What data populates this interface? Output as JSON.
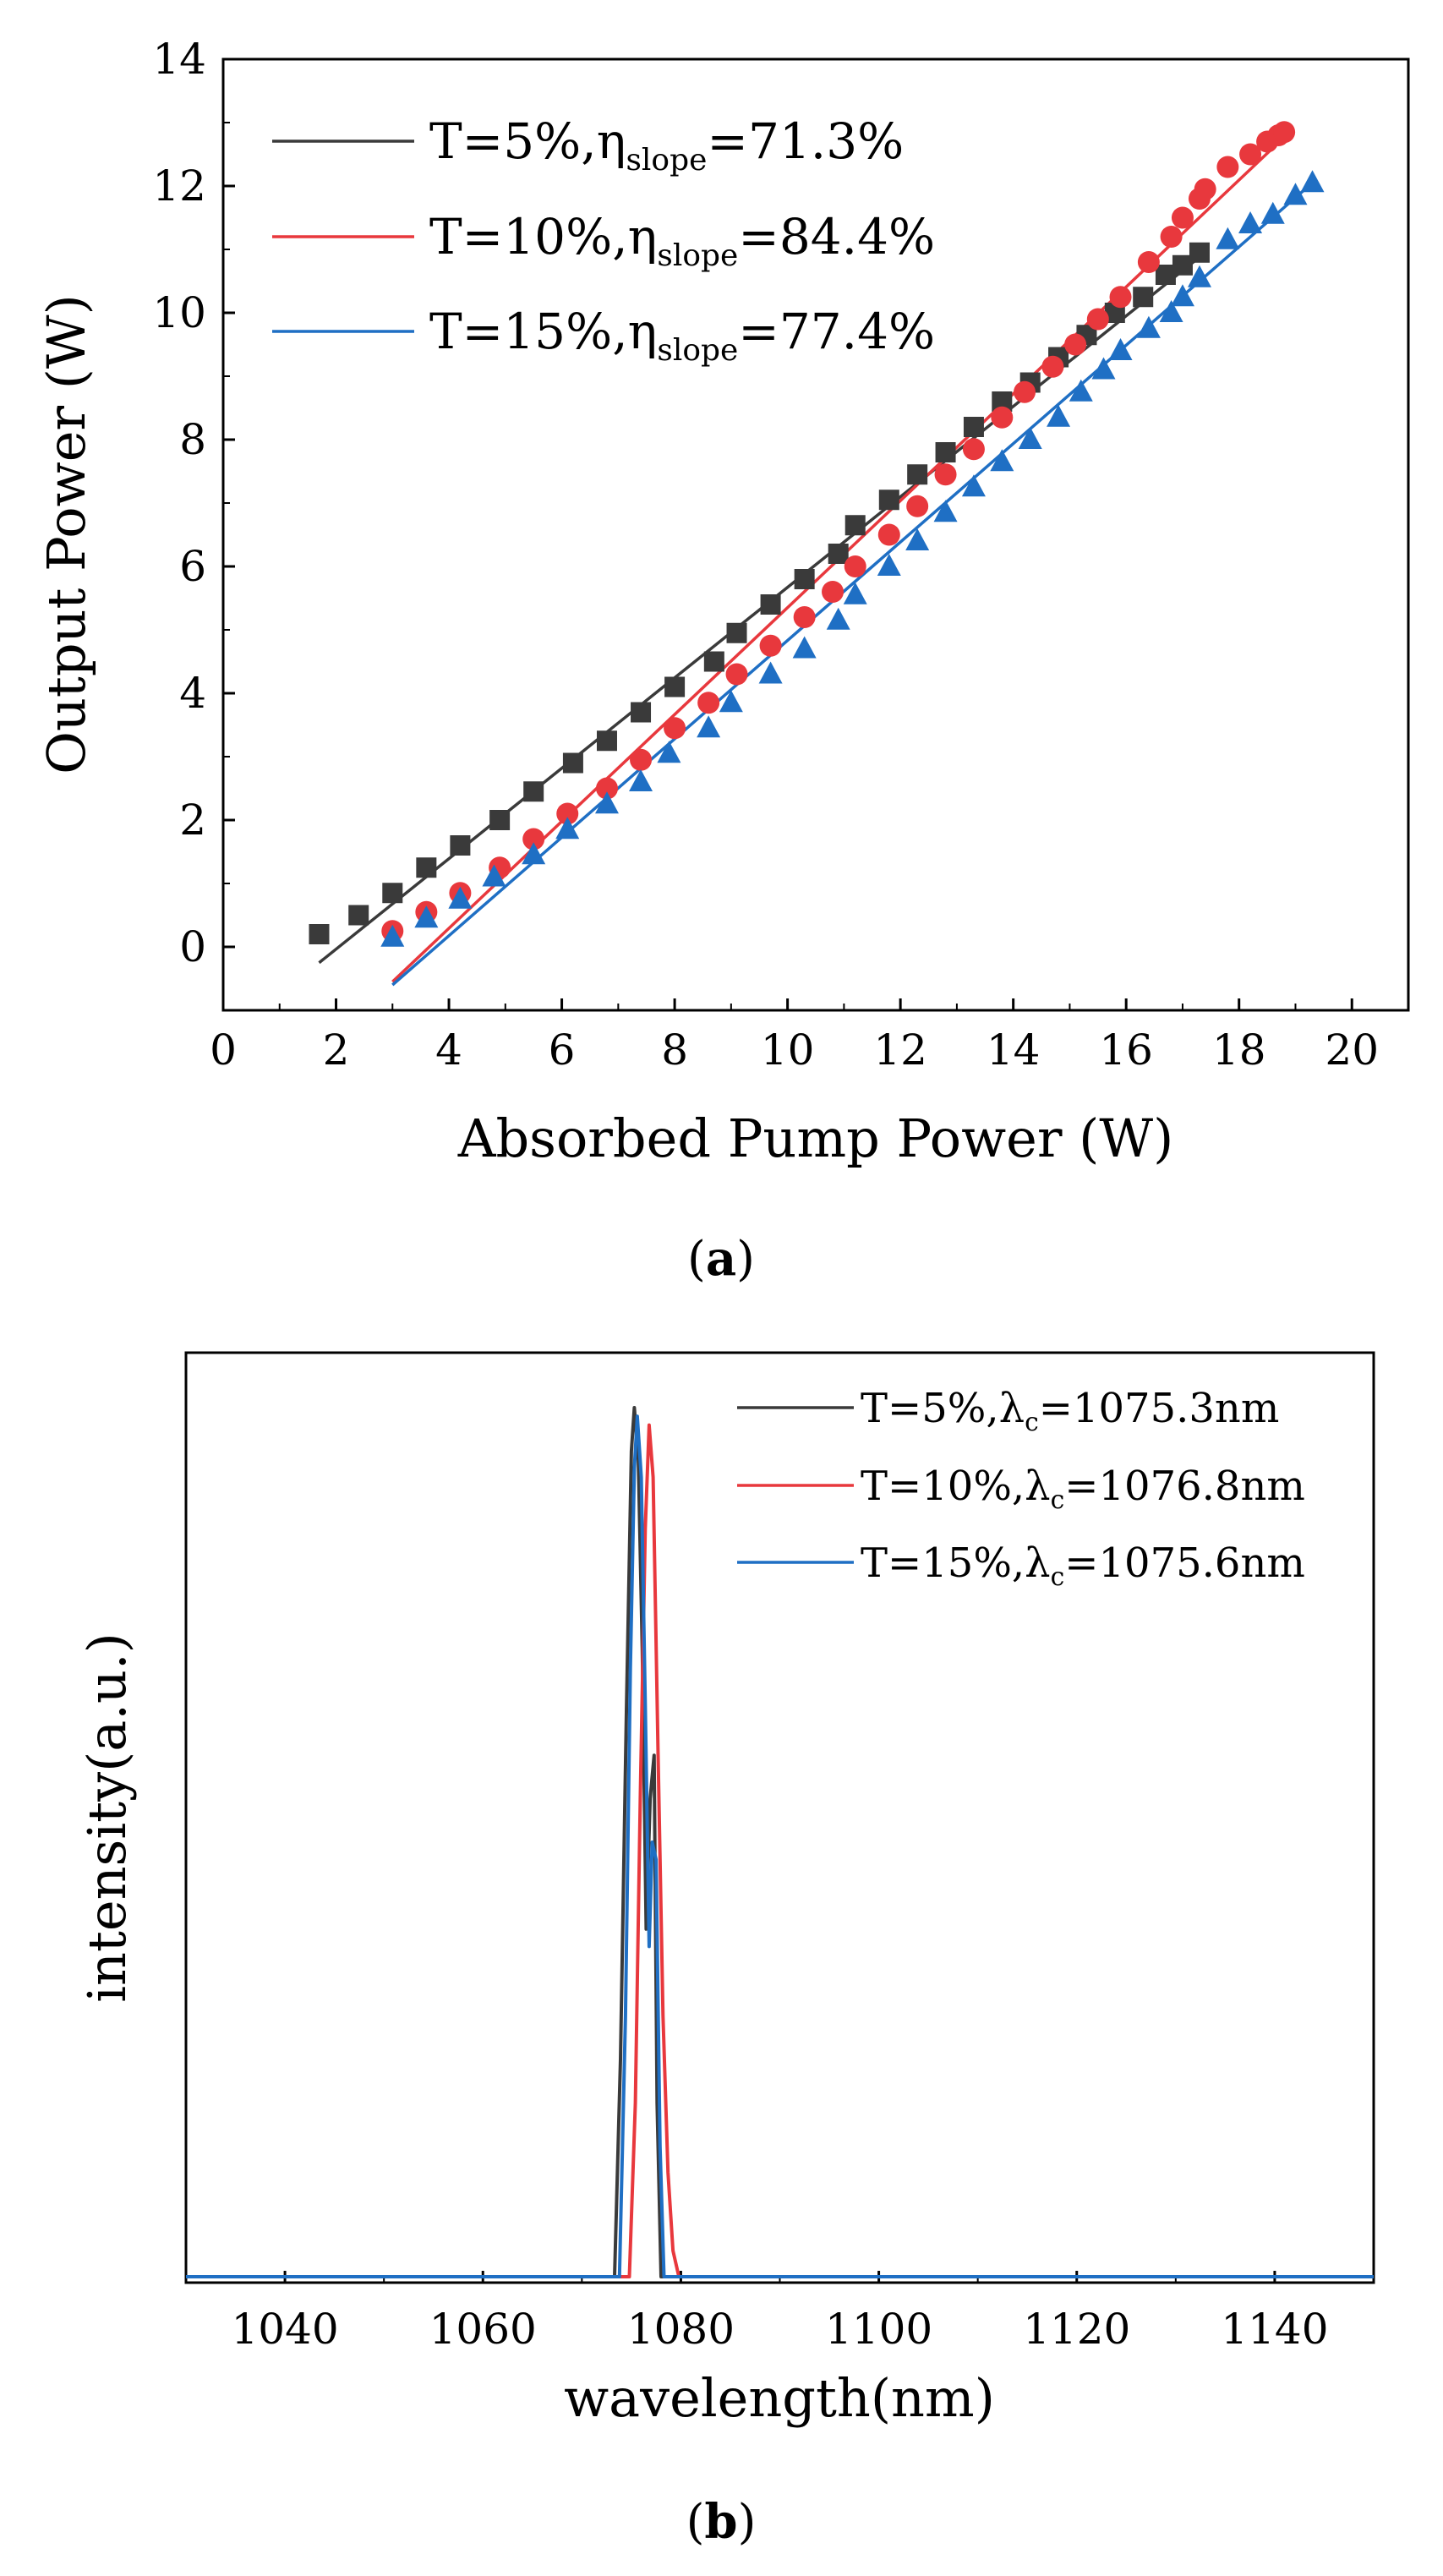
{
  "chart_data": [
    {
      "type": "scatter",
      "panel": "(a)",
      "caption_letter": "a",
      "xlabel": "Absorbed Pump Power (W)",
      "ylabel": "Output Power (W)",
      "xlim": [
        0,
        21
      ],
      "ylim": [
        -1,
        14
      ],
      "xticks": [
        "0",
        "2",
        "4",
        "6",
        "8",
        "10",
        "12",
        "14",
        "16",
        "18",
        "20"
      ],
      "yticks": [
        "0",
        "2",
        "4",
        "6",
        "8",
        "10",
        "12",
        "14"
      ],
      "legend_position": "top-left",
      "series": [
        {
          "name": "T=5%",
          "label_prefix": "T=5%,η",
          "label_sub": "slope",
          "label_suffix": "=71.3%",
          "color": "#3a3a3a",
          "marker": "square",
          "x": [
            1.7,
            2.4,
            3.0,
            3.6,
            4.2,
            4.9,
            5.5,
            6.2,
            6.8,
            7.4,
            8.0,
            8.7,
            9.1,
            9.7,
            10.3,
            10.9,
            11.2,
            11.8,
            12.3,
            12.8,
            13.3,
            13.8,
            14.3,
            14.8,
            15.3,
            15.8,
            16.3,
            16.7,
            17.0,
            17.3
          ],
          "y": [
            0.2,
            0.5,
            0.85,
            1.25,
            1.6,
            2.0,
            2.45,
            2.9,
            3.25,
            3.7,
            4.1,
            4.5,
            4.95,
            5.4,
            5.8,
            6.2,
            6.65,
            7.05,
            7.45,
            7.8,
            8.2,
            8.6,
            8.9,
            9.3,
            9.65,
            10.0,
            10.25,
            10.6,
            10.75,
            10.95
          ],
          "fit_x": [
            1.7,
            17.4
          ],
          "fit_y": [
            -0.25,
            10.95
          ]
        },
        {
          "name": "T=10%",
          "label_prefix": "T=10%,η",
          "label_sub": "slope",
          "label_suffix": "=84.4%",
          "color": "#e8383d",
          "marker": "circle",
          "x": [
            3.0,
            3.6,
            4.2,
            4.9,
            5.5,
            6.1,
            6.8,
            7.4,
            8.0,
            8.6,
            9.1,
            9.7,
            10.3,
            10.8,
            11.2,
            11.8,
            12.3,
            12.8,
            13.3,
            13.8,
            14.2,
            14.7,
            15.1,
            15.5,
            15.9,
            16.4,
            16.8,
            17.0,
            17.3,
            17.4,
            17.8,
            18.2,
            18.5,
            18.7,
            18.8
          ],
          "y": [
            0.25,
            0.55,
            0.85,
            1.25,
            1.7,
            2.1,
            2.5,
            2.95,
            3.45,
            3.85,
            4.3,
            4.75,
            5.2,
            5.6,
            6.0,
            6.5,
            6.95,
            7.45,
            7.85,
            8.35,
            8.75,
            9.15,
            9.5,
            9.9,
            10.25,
            10.8,
            11.2,
            11.5,
            11.8,
            11.95,
            12.3,
            12.5,
            12.7,
            12.8,
            12.85
          ],
          "fit_x": [
            3.0,
            18.6
          ],
          "fit_y": [
            -0.55,
            12.6
          ]
        },
        {
          "name": "T=15%",
          "label_prefix": "T=15%,η",
          "label_sub": "slope",
          "label_suffix": "=77.4%",
          "color": "#1f6fc4",
          "marker": "triangle",
          "x": [
            3.0,
            3.6,
            4.2,
            4.8,
            5.5,
            6.1,
            6.8,
            7.4,
            7.9,
            8.6,
            9.0,
            9.7,
            10.3,
            10.9,
            11.2,
            11.8,
            12.3,
            12.8,
            13.3,
            13.8,
            14.3,
            14.8,
            15.2,
            15.6,
            15.9,
            16.4,
            16.8,
            17.0,
            17.3,
            17.8,
            18.2,
            18.6,
            19.0,
            19.3
          ],
          "y": [
            0.15,
            0.45,
            0.75,
            1.1,
            1.45,
            1.85,
            2.25,
            2.6,
            3.05,
            3.45,
            3.85,
            4.3,
            4.7,
            5.15,
            5.55,
            6.0,
            6.4,
            6.85,
            7.25,
            7.65,
            8.0,
            8.35,
            8.75,
            9.1,
            9.4,
            9.75,
            10.0,
            10.25,
            10.55,
            11.15,
            11.4,
            11.55,
            11.85,
            12.05
          ],
          "fit_x": [
            3.0,
            19.3
          ],
          "fit_y": [
            -0.6,
            12.05
          ]
        }
      ]
    },
    {
      "type": "line",
      "panel": "(b)",
      "caption_letter": "b",
      "xlabel": "wavelength(nm)",
      "ylabel": "intensity(a.u.)",
      "xlim": [
        1030,
        1150
      ],
      "ylim": [
        0,
        1.06
      ],
      "xticks": [
        "1040",
        "1060",
        "1080",
        "1100",
        "1120",
        "1140"
      ],
      "legend_position": "top-right",
      "series": [
        {
          "name": "T=5%",
          "label_prefix": "T=5%,λ",
          "label_sub": "c",
          "label_suffix": "=1075.3nm",
          "color": "#3a3a3a",
          "x": [
            1030,
            1073.3,
            1073.9,
            1074.5,
            1075.0,
            1075.3,
            1075.7,
            1076.1,
            1076.5,
            1076.9,
            1077.3,
            1077.6,
            1078.0,
            1150
          ],
          "y": [
            0,
            0,
            0.25,
            0.65,
            0.95,
            1.0,
            0.94,
            0.72,
            0.4,
            0.55,
            0.6,
            0.2,
            0,
            0
          ]
        },
        {
          "name": "T=10%",
          "label_prefix": "T=10%,λ",
          "label_sub": "c",
          "label_suffix": "=1076.8nm",
          "color": "#e8383d",
          "x": [
            1030,
            1074.8,
            1075.4,
            1075.9,
            1076.4,
            1076.8,
            1077.2,
            1077.7,
            1078.2,
            1078.7,
            1079.2,
            1079.8,
            1150
          ],
          "y": [
            0,
            0,
            0.2,
            0.55,
            0.86,
            0.98,
            0.92,
            0.6,
            0.3,
            0.12,
            0.03,
            0,
            0
          ]
        },
        {
          "name": "T=15%",
          "label_prefix": "T=15%,λ",
          "label_sub": "c",
          "label_suffix": "=1075.6nm",
          "color": "#1f6fc4",
          "x": [
            1030,
            1073.8,
            1074.4,
            1074.9,
            1075.3,
            1075.6,
            1076.0,
            1076.4,
            1076.8,
            1077.1,
            1077.5,
            1077.9,
            1078.3,
            1150
          ],
          "y": [
            0,
            0,
            0.3,
            0.7,
            0.93,
            0.99,
            0.92,
            0.66,
            0.38,
            0.5,
            0.48,
            0.15,
            0,
            0
          ]
        }
      ]
    }
  ]
}
